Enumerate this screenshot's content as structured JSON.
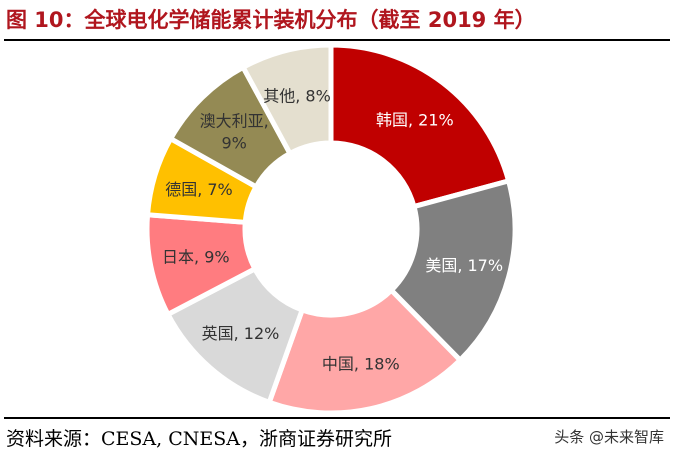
{
  "title": "图 10：全球电化学储能累计装机分布（截至 2019 年）",
  "source": "资料来源：CESA, CNESA，浙商证券研究所",
  "watermark": "头条 @未来智库",
  "chart_data": {
    "type": "pie",
    "donut": true,
    "title": "",
    "start": "12 o'clock",
    "direction": "clockwise",
    "slices": [
      {
        "name": "韩国",
        "value": 21,
        "label": "韩国, 21%",
        "color": "#C00000",
        "text_color": "#FFFFFF"
      },
      {
        "name": "美国",
        "value": 17,
        "label": "美国, 17%",
        "color": "#808080",
        "text_color": "#FFFFFF"
      },
      {
        "name": "中国",
        "value": 18,
        "label": "中国, 18%",
        "color": "#FFA7A7",
        "text_color": "#333333"
      },
      {
        "name": "英国",
        "value": 12,
        "label": "英国, 12%",
        "color": "#D9D9D9",
        "text_color": "#333333"
      },
      {
        "name": "日本",
        "value": 9,
        "label": "日本, 9%",
        "color": "#FF7C80",
        "text_color": "#333333"
      },
      {
        "name": "德国",
        "value": 7,
        "label": "德国, 7%",
        "color": "#FFC000",
        "text_color": "#333333"
      },
      {
        "name": "澳大利亚",
        "value": 9,
        "label": "澳大利亚, 9%",
        "color": "#948A54",
        "text_color": "#333333"
      },
      {
        "name": "其他",
        "value": 8,
        "label": "其他, 8%",
        "color": "#E4DFCF",
        "text_color": "#333333"
      }
    ]
  }
}
